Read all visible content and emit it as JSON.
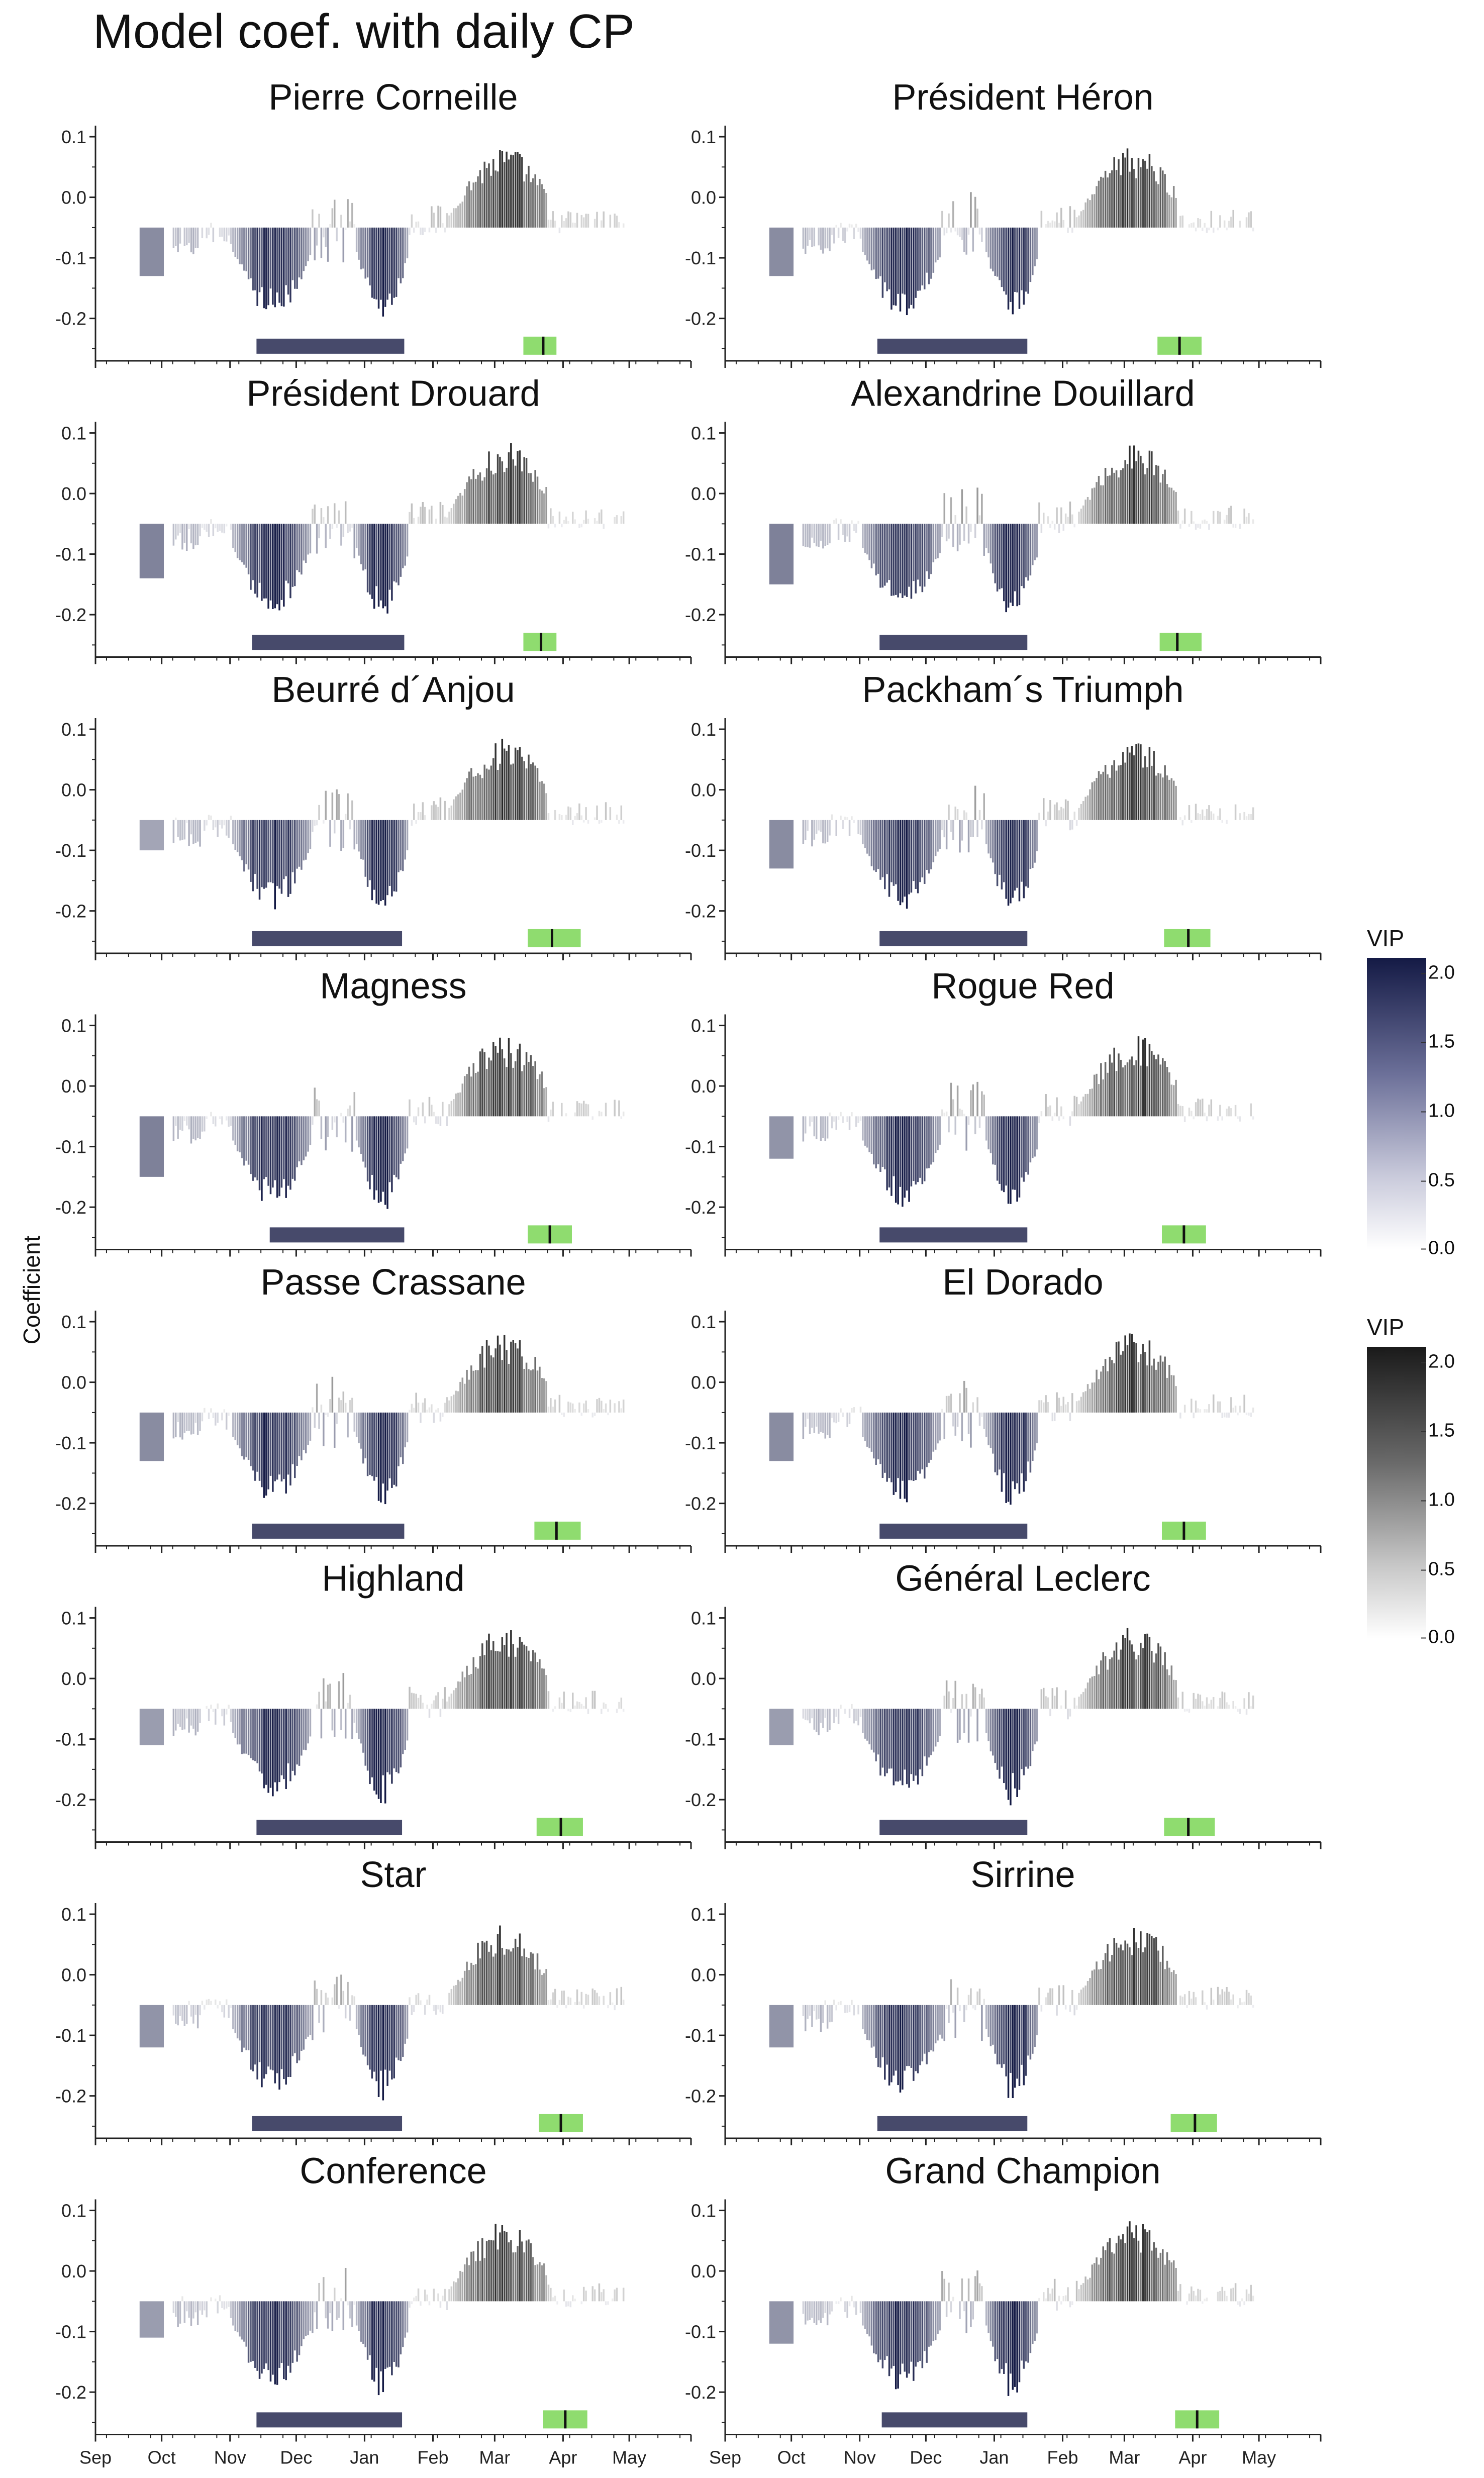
{
  "title": "Model coef. with daily CP",
  "y_axis_title": "Coefficient",
  "legends": [
    {
      "title": "VIP",
      "ticks": [
        "2.0",
        "1.5",
        "1.0",
        "0.5",
        "0.0"
      ],
      "color_low": "#ffffff",
      "color_high": "#141a45"
    },
    {
      "title": "VIP",
      "ticks": [
        "2.0",
        "1.5",
        "1.0",
        "0.5",
        "0.0"
      ],
      "color_low": "#ffffff",
      "color_high": "#1a1a1a"
    }
  ],
  "chart_data": {
    "type": "bar",
    "description_units": "Daily PLS model coefficients for chill portions (CP) from Sep to May; bar shade = VIP (blue for negative coefficients, grey for positive)",
    "ylim": [
      -0.27,
      0.11
    ],
    "y_ticks": [
      0.1,
      0.0,
      -0.1,
      -0.2
    ],
    "y_tick_labels": [
      "0.1",
      "0.0",
      "-0.1",
      "-0.2"
    ],
    "x_range_days": [
      0,
      270
    ],
    "x_ticks": [
      0,
      30,
      61,
      91,
      122,
      153,
      181,
      212,
      242,
      270
    ],
    "x_tick_labels": [
      "Sep",
      "Oct",
      "Nov",
      "Dec",
      "Jan",
      "Feb",
      "Mar",
      "Apr",
      "May"
    ],
    "panels": [
      {
        "name": "Pierre Corneille",
        "chill_start": 73,
        "chill_end": 140,
        "bloom_start": 194,
        "bloom_end": 209,
        "bloom_mid": 203,
        "mean_coef": -0.13
      },
      {
        "name": "Président Héron",
        "chill_start": 69,
        "chill_end": 137,
        "bloom_start": 196,
        "bloom_end": 216,
        "bloom_mid": 206,
        "mean_coef": -0.13
      },
      {
        "name": "Président Drouard",
        "chill_start": 71,
        "chill_end": 140,
        "bloom_start": 194,
        "bloom_end": 209,
        "bloom_mid": 202,
        "mean_coef": -0.14
      },
      {
        "name": "Alexandrine Douillard",
        "chill_start": 70,
        "chill_end": 137,
        "bloom_start": 197,
        "bloom_end": 216,
        "bloom_mid": 205,
        "mean_coef": -0.15
      },
      {
        "name": "Beurré d´Anjou",
        "chill_start": 71,
        "chill_end": 139,
        "bloom_start": 196,
        "bloom_end": 220,
        "bloom_mid": 207,
        "mean_coef": -0.1
      },
      {
        "name": "Packham´s Triumph",
        "chill_start": 70,
        "chill_end": 137,
        "bloom_start": 199,
        "bloom_end": 220,
        "bloom_mid": 210,
        "mean_coef": -0.13
      },
      {
        "name": "Magness",
        "chill_start": 79,
        "chill_end": 140,
        "bloom_start": 196,
        "bloom_end": 216,
        "bloom_mid": 206,
        "mean_coef": -0.15
      },
      {
        "name": "Rogue Red",
        "chill_start": 70,
        "chill_end": 137,
        "bloom_start": 198,
        "bloom_end": 218,
        "bloom_mid": 208,
        "mean_coef": -0.12
      },
      {
        "name": "Passe Crassane",
        "chill_start": 71,
        "chill_end": 140,
        "bloom_start": 199,
        "bloom_end": 220,
        "bloom_mid": 209,
        "mean_coef": -0.13
      },
      {
        "name": "El Dorado",
        "chill_start": 70,
        "chill_end": 137,
        "bloom_start": 198,
        "bloom_end": 218,
        "bloom_mid": 208,
        "mean_coef": -0.13
      },
      {
        "name": "Highland",
        "chill_start": 73,
        "chill_end": 139,
        "bloom_start": 200,
        "bloom_end": 221,
        "bloom_mid": 211,
        "mean_coef": -0.11
      },
      {
        "name": "Général Leclerc",
        "chill_start": 70,
        "chill_end": 137,
        "bloom_start": 199,
        "bloom_end": 222,
        "bloom_mid": 210,
        "mean_coef": -0.11
      },
      {
        "name": "Star",
        "chill_start": 71,
        "chill_end": 139,
        "bloom_start": 201,
        "bloom_end": 221,
        "bloom_mid": 211,
        "mean_coef": -0.12
      },
      {
        "name": "Sirrine",
        "chill_start": 69,
        "chill_end": 137,
        "bloom_start": 202,
        "bloom_end": 223,
        "bloom_mid": 213,
        "mean_coef": -0.12
      },
      {
        "name": "Conference",
        "chill_start": 73,
        "chill_end": 139,
        "bloom_start": 203,
        "bloom_end": 223,
        "bloom_mid": 213,
        "mean_coef": -0.11
      },
      {
        "name": "Grand Champion",
        "chill_start": 71,
        "chill_end": 137,
        "bloom_start": 204,
        "bloom_end": 224,
        "bloom_mid": 214,
        "mean_coef": -0.12
      }
    ]
  }
}
